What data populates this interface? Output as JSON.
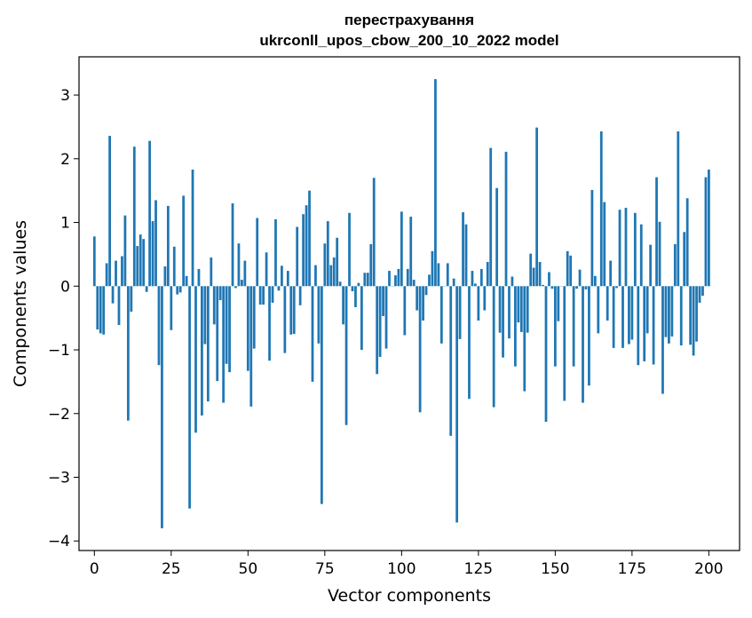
{
  "chart_data": {
    "type": "bar",
    "title_line1": "перестрахування",
    "title_line2": "ukrconll_upos_cbow_200_10_2022 model",
    "xlabel": "Vector components",
    "ylabel": "Components values",
    "xlim": [
      -5,
      210
    ],
    "ylim": [
      -4.15,
      3.6
    ],
    "xticks": [
      0,
      25,
      50,
      75,
      100,
      125,
      150,
      175,
      200
    ],
    "xtick_labels": [
      "0",
      "25",
      "50",
      "75",
      "100",
      "125",
      "150",
      "175",
      "200"
    ],
    "yticks": [
      -4,
      -3,
      -2,
      -1,
      0,
      1,
      2,
      3
    ],
    "ytick_labels": [
      "−4",
      "−3",
      "−2",
      "−1",
      "0",
      "1",
      "2",
      "3"
    ],
    "bar_color": "#1f77b4",
    "grid": false,
    "legend": "none",
    "values": [
      0.78,
      -0.68,
      -0.74,
      -0.76,
      0.36,
      2.36,
      -0.27,
      0.4,
      -0.61,
      0.47,
      1.11,
      -2.11,
      -0.4,
      2.19,
      0.63,
      0.81,
      0.74,
      -0.09,
      2.28,
      1.02,
      1.35,
      -1.24,
      -3.8,
      0.31,
      1.26,
      -0.69,
      0.62,
      -0.13,
      -0.1,
      1.42,
      0.16,
      -3.49,
      1.83,
      -2.3,
      0.27,
      -2.03,
      -0.91,
      -1.81,
      0.45,
      -0.6,
      -1.49,
      -0.22,
      -1.83,
      -1.22,
      -1.35,
      1.3,
      -0.03,
      0.67,
      0.1,
      0.4,
      -1.33,
      -1.89,
      -0.98,
      1.07,
      -0.29,
      -0.29,
      0.53,
      -1.17,
      -0.26,
      1.05,
      -0.07,
      0.32,
      -1.05,
      0.24,
      -0.76,
      -0.75,
      0.93,
      -0.3,
      1.13,
      1.27,
      1.5,
      -1.5,
      0.33,
      -0.9,
      -3.42,
      0.67,
      1.02,
      0.33,
      0.45,
      0.76,
      0.07,
      -0.6,
      -2.18,
      1.15,
      -0.08,
      -0.33,
      0.05,
      -1.0,
      0.21,
      0.21,
      0.66,
      1.7,
      -1.38,
      -1.11,
      -0.47,
      -0.98,
      0.24,
      0.0,
      0.17,
      0.27,
      1.17,
      -0.77,
      0.27,
      1.09,
      0.1,
      -0.38,
      -1.98,
      -0.54,
      -0.14,
      0.18,
      0.55,
      3.25,
      0.36,
      -0.9,
      0.0,
      0.36,
      -2.35,
      0.12,
      -3.71,
      -0.83,
      1.16,
      0.97,
      -1.77,
      0.24,
      0.04,
      -0.54,
      0.27,
      -0.38,
      0.38,
      2.17,
      -1.9,
      1.54,
      -0.73,
      -1.12,
      2.11,
      -0.82,
      0.15,
      -1.26,
      -0.57,
      -0.72,
      -1.65,
      -0.73,
      0.51,
      0.29,
      2.49,
      0.38,
      0.02,
      -2.13,
      0.22,
      -0.04,
      -1.26,
      -0.55,
      0.0,
      -1.8,
      0.55,
      0.48,
      -1.26,
      -0.04,
      0.26,
      -1.83,
      -0.05,
      -1.56,
      1.51,
      0.16,
      -0.74,
      2.43,
      1.32,
      -0.54,
      0.4,
      -0.97,
      -0.03,
      1.2,
      -0.97,
      1.23,
      -0.91,
      -0.84,
      1.15,
      -1.24,
      0.97,
      -1.18,
      -0.74,
      0.65,
      -1.23,
      1.71,
      1.01,
      -1.69,
      -0.8,
      -0.9,
      -0.79,
      0.66,
      2.43,
      -0.93,
      0.85,
      1.38,
      -0.92,
      -1.09,
      -0.87,
      -0.26,
      -0.15,
      1.71,
      1.83
    ]
  }
}
